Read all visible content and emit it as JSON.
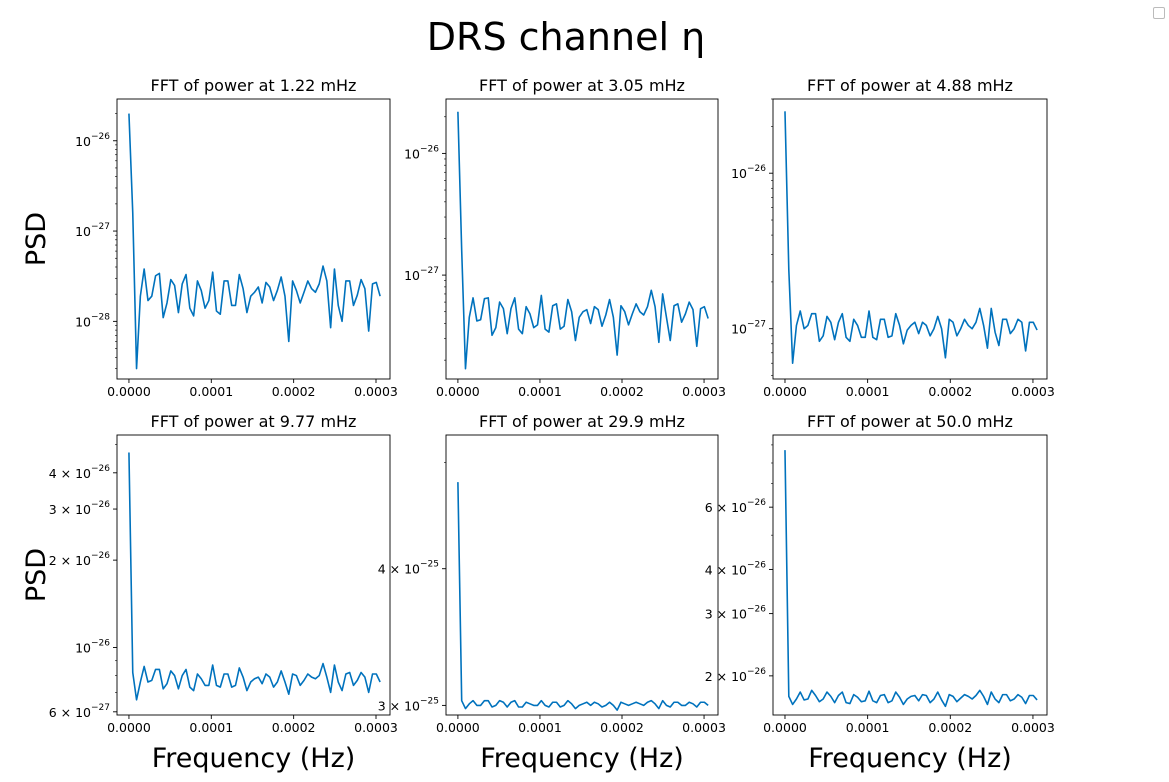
{
  "figure": {
    "suptitle": "DRS channel η"
  },
  "colors": {
    "line": "#0072bd",
    "axes": "#000000",
    "background": "#ffffff"
  },
  "chart_data": [
    {
      "type": "line",
      "title": "FFT of power at 1.22 mHz",
      "ylabel": "PSD",
      "xlabel": "",
      "yscale": "log",
      "xlim": [
        -1.45e-05,
        0.000317
      ],
      "ylim": [
        2.3e-29,
        2.9e-26
      ],
      "xticks": [
        {
          "v": 0,
          "label": "0.0000"
        },
        {
          "v": 0.0001,
          "label": "0.0001"
        },
        {
          "v": 0.0002,
          "label": "0.0002"
        },
        {
          "v": 0.0003,
          "label": "0.0003"
        }
      ],
      "yticks": [
        {
          "v": 1e-28,
          "base": "10",
          "exp": "−28"
        },
        {
          "v": 1e-27,
          "base": "10",
          "exp": "−27"
        },
        {
          "v": 1e-26,
          "base": "10",
          "exp": "−26"
        }
      ],
      "series": [
        {
          "values": [
            2e-26,
            1.6e-27,
            3e-29,
            1.9e-28,
            3.8e-28,
            1.7e-28,
            1.9e-28,
            3.2e-28,
            3.4e-28,
            1.1e-28,
            1.6e-28,
            2.9e-28,
            2.5e-28,
            1.25e-28,
            2.6e-28,
            3.3e-28,
            1.4e-28,
            1.15e-28,
            2.8e-28,
            2.2e-28,
            1.4e-28,
            1.7e-28,
            3.5e-28,
            1.3e-28,
            1.2e-28,
            2.8e-28,
            2.8e-28,
            1.5e-28,
            1.5e-28,
            3.3e-28,
            2.3e-28,
            1.25e-28,
            1.9e-28,
            2.1e-28,
            2.4e-28,
            1.6e-28,
            2.7e-28,
            2.4e-28,
            1.7e-28,
            2.2e-28,
            3.1e-28,
            1.9e-28,
            6e-29,
            2.8e-28,
            2.2e-28,
            1.6e-28,
            2.1e-28,
            2.8e-28,
            2.3e-28,
            2.1e-28,
            2.6e-28,
            4.1e-28,
            2.8e-28,
            8.5e-29,
            3.8e-28,
            1.5e-28,
            1e-28,
            2.8e-28,
            2.8e-28,
            1.5e-28,
            1.95e-28,
            2.9e-28,
            2.3e-28,
            7.8e-29,
            2.6e-28,
            2.7e-28,
            1.9e-28
          ]
        }
      ]
    },
    {
      "type": "line",
      "title": "FFT of power at 3.05 mHz",
      "ylabel": "",
      "xlabel": "",
      "yscale": "log",
      "xlim": [
        -1.45e-05,
        0.000317
      ],
      "ylim": [
        1.4e-28,
        2.8e-26
      ],
      "xticks": [
        {
          "v": 0,
          "label": "0.0000"
        },
        {
          "v": 0.0001,
          "label": "0.0001"
        },
        {
          "v": 0.0002,
          "label": "0.0002"
        },
        {
          "v": 0.0003,
          "label": "0.0003"
        }
      ],
      "yticks": [
        {
          "v": 1e-27,
          "base": "10",
          "exp": "−27"
        },
        {
          "v": 1e-26,
          "base": "10",
          "exp": "−26"
        }
      ],
      "series": [
        {
          "values": [
            2.2e-26,
            1.6e-27,
            1.7e-28,
            4.5e-28,
            6.5e-28,
            4.2e-28,
            4.3e-28,
            6.4e-28,
            6.5e-28,
            3.2e-28,
            3.7e-28,
            6e-28,
            5.3e-28,
            3.3e-28,
            5.3e-28,
            6.5e-28,
            3.6e-28,
            3.3e-28,
            5.5e-28,
            4.8e-28,
            3.7e-28,
            3.9e-28,
            6.8e-28,
            3.6e-28,
            3.4e-28,
            5.6e-28,
            5.8e-28,
            3.6e-28,
            3.8e-28,
            6.3e-28,
            5e-28,
            2.9e-28,
            4.5e-28,
            5e-28,
            5.2e-28,
            4e-28,
            5.5e-28,
            5.2e-28,
            3.8e-28,
            4.7e-28,
            6.3e-28,
            4.5e-28,
            2.2e-28,
            5.6e-28,
            5e-28,
            3.9e-28,
            4.8e-28,
            5.8e-28,
            5e-28,
            4.7e-28,
            5.5e-28,
            7.5e-28,
            5.5e-28,
            2.8e-28,
            7e-28,
            4.5e-28,
            2.9e-28,
            5.6e-28,
            5.8e-28,
            4.1e-28,
            4.8e-28,
            6e-28,
            5.2e-28,
            2.6e-28,
            5.3e-28,
            5.5e-28,
            4.4e-28
          ]
        }
      ]
    },
    {
      "type": "line",
      "title": "FFT of power at 4.88 mHz",
      "ylabel": "",
      "xlabel": "",
      "yscale": "log",
      "xlim": [
        -1.45e-05,
        0.000317
      ],
      "ylim": [
        4.75e-28,
        3e-26
      ],
      "xticks": [
        {
          "v": 0,
          "label": "0.0000"
        },
        {
          "v": 0.0001,
          "label": "0.0001"
        },
        {
          "v": 0.0002,
          "label": "0.0002"
        },
        {
          "v": 0.0003,
          "label": "0.0003"
        }
      ],
      "yticks": [
        {
          "v": 1e-27,
          "base": "10",
          "exp": "−27"
        },
        {
          "v": 1e-26,
          "base": "10",
          "exp": "−26"
        }
      ],
      "series": [
        {
          "values": [
            2.5e-26,
            2.4e-27,
            6e-28,
            1.05e-27,
            1.3e-27,
            1e-27,
            1.05e-27,
            1.25e-27,
            1.25e-27,
            8.3e-28,
            9e-28,
            1.2e-27,
            1.1e-27,
            8.5e-28,
            1.1e-27,
            1.25e-27,
            8.8e-28,
            8.3e-28,
            1.15e-27,
            1.05e-27,
            8.8e-28,
            8.8e-28,
            1.3e-27,
            8.8e-28,
            8.5e-28,
            1.15e-27,
            1.15e-27,
            8.8e-28,
            9e-28,
            1.25e-27,
            1.05e-27,
            8e-28,
            9.8e-28,
            1.05e-27,
            1.1e-27,
            9.3e-28,
            1.1e-27,
            1.05e-27,
            9e-28,
            1e-27,
            1.2e-27,
            1e-27,
            6.5e-28,
            1.15e-27,
            1.1e-27,
            9e-28,
            1e-27,
            1.15e-27,
            1.05e-27,
            1e-27,
            1.1e-27,
            1.35e-27,
            1.05e-27,
            7.5e-28,
            1.35e-27,
            9.5e-28,
            7.8e-28,
            1.15e-27,
            1.15e-27,
            9.3e-28,
            1e-27,
            1.15e-27,
            1.1e-27,
            7.2e-28,
            1.1e-27,
            1.1e-27,
            9.8e-28
          ]
        }
      ]
    },
    {
      "type": "line",
      "title": "FFT of power at 9.77 mHz",
      "ylabel": "PSD",
      "xlabel": "Frequency (Hz)",
      "yscale": "log",
      "xlim": [
        -1.45e-05,
        0.000317
      ],
      "ylim": [
        5.85e-27,
        5.4e-26
      ],
      "xticks": [
        {
          "v": 0,
          "label": "0.0000"
        },
        {
          "v": 0.0001,
          "label": "0.0001"
        },
        {
          "v": 0.0002,
          "label": "0.0002"
        },
        {
          "v": 0.0003,
          "label": "0.0003"
        }
      ],
      "yticks": [
        {
          "v": 6e-27,
          "base": "6 × 10",
          "exp": "−27"
        },
        {
          "v": 1e-26,
          "base": "10",
          "exp": "−26"
        },
        {
          "v": 2e-26,
          "base": "2 × 10",
          "exp": "−26"
        },
        {
          "v": 3e-26,
          "base": "3 × 10",
          "exp": "−26"
        },
        {
          "v": 4e-26,
          "base": "4 × 10",
          "exp": "−26"
        }
      ],
      "series": [
        {
          "values": [
            4.7e-26,
            8.2e-27,
            6.6e-27,
            7.6e-27,
            8.6e-27,
            7.6e-27,
            7.7e-27,
            8.4e-27,
            8.4e-27,
            7.2e-27,
            7.5e-27,
            8.3e-27,
            8e-27,
            7.2e-27,
            8e-27,
            8.4e-27,
            7.3e-27,
            7.1e-27,
            8.1e-27,
            7.8e-27,
            7.4e-27,
            7.4e-27,
            8.7e-27,
            7.4e-27,
            7.3e-27,
            8.1e-27,
            8.1e-27,
            7.3e-27,
            7.4e-27,
            8.5e-27,
            7.9e-27,
            7.1e-27,
            7.6e-27,
            7.8e-27,
            7.9e-27,
            7.5e-27,
            8.1e-27,
            7.9e-27,
            7.3e-27,
            7.6e-27,
            8.3e-27,
            7.6e-27,
            6.9e-27,
            8.1e-27,
            8e-27,
            7.4e-27,
            7.7e-27,
            8.1e-27,
            7.9e-27,
            7.8e-27,
            8e-27,
            8.8e-27,
            7.9e-27,
            7e-27,
            8.7e-27,
            7.6e-27,
            7.1e-27,
            8.1e-27,
            8.2e-27,
            7.4e-27,
            7.7e-27,
            8.2e-27,
            7.9e-27,
            7e-27,
            8.1e-27,
            8.1e-27,
            7.6e-27
          ]
        }
      ]
    },
    {
      "type": "line",
      "title": "FFT of power at 29.9 mHz",
      "ylabel": "",
      "xlabel": "Frequency (Hz)",
      "yscale": "log",
      "xlim": [
        -1.45e-05,
        0.000317
      ],
      "ylim": [
        2.94e-25,
        5.3e-25
      ],
      "xticks": [
        {
          "v": 0,
          "label": "0.0000"
        },
        {
          "v": 0.0001,
          "label": "0.0001"
        },
        {
          "v": 0.0002,
          "label": "0.0002"
        },
        {
          "v": 0.0003,
          "label": "0.0003"
        }
      ],
      "yticks": [
        {
          "v": 3e-25,
          "base": "3 × 10",
          "exp": "−25"
        },
        {
          "v": 4e-25,
          "base": "4 × 10",
          "exp": "−25"
        }
      ],
      "series": [
        {
          "values": [
            4.8e-25,
            3.03e-25,
            2.98e-25,
            3.01e-25,
            3.03e-25,
            3e-25,
            3e-25,
            3.03e-25,
            3.03e-25,
            2.99e-25,
            3e-25,
            3.03e-25,
            3.02e-25,
            2.99e-25,
            3.02e-25,
            3.03e-25,
            2.99e-25,
            2.99e-25,
            3.02e-25,
            3.01e-25,
            3e-25,
            3e-25,
            3.03e-25,
            3e-25,
            2.99e-25,
            3.02e-25,
            3.02e-25,
            2.99e-25,
            3e-25,
            3.03e-25,
            3.01e-25,
            2.98e-25,
            3e-25,
            3.01e-25,
            3.02e-25,
            3e-25,
            3.02e-25,
            3.01e-25,
            2.99e-25,
            3e-25,
            3.02e-25,
            3e-25,
            2.97e-25,
            3.02e-25,
            3.01e-25,
            3e-25,
            3.01e-25,
            3.02e-25,
            3.01e-25,
            3e-25,
            3.02e-25,
            3.03e-25,
            3.01e-25,
            2.98e-25,
            3.03e-25,
            3e-25,
            2.99e-25,
            3.02e-25,
            3.02e-25,
            3e-25,
            3e-25,
            3.02e-25,
            3.01e-25,
            2.99e-25,
            3.02e-25,
            3.02e-25,
            3e-25
          ]
        }
      ]
    },
    {
      "type": "line",
      "title": "FFT of power at 50.0 mHz",
      "ylabel": "",
      "xlabel": "Frequency (Hz)",
      "yscale": "log",
      "xlim": [
        -1.45e-05,
        0.000317
      ],
      "ylim": [
        1.55e-26,
        9.6e-26
      ],
      "xticks": [
        {
          "v": 0,
          "label": "0.0000"
        },
        {
          "v": 0.0001,
          "label": "0.0001"
        },
        {
          "v": 0.0002,
          "label": "0.0002"
        },
        {
          "v": 0.0003,
          "label": "0.0003"
        }
      ],
      "yticks": [
        {
          "v": 2e-26,
          "base": "2 × 10",
          "exp": "−26"
        },
        {
          "v": 3e-26,
          "base": "3 × 10",
          "exp": "−26"
        },
        {
          "v": 4e-26,
          "base": "4 × 10",
          "exp": "−26"
        },
        {
          "v": 6e-26,
          "base": "6 × 10",
          "exp": "−26"
        }
      ],
      "series": [
        {
          "values": [
            8.7e-26,
            1.75e-26,
            1.66e-26,
            1.72e-26,
            1.8e-26,
            1.71e-26,
            1.72e-26,
            1.82e-26,
            1.76e-26,
            1.69e-26,
            1.72e-26,
            1.8e-26,
            1.75e-26,
            1.68e-26,
            1.76e-26,
            1.8e-26,
            1.68e-26,
            1.67e-26,
            1.77e-26,
            1.74e-26,
            1.69e-26,
            1.7e-26,
            1.81e-26,
            1.7e-26,
            1.68e-26,
            1.76e-26,
            1.77e-26,
            1.68e-26,
            1.7e-26,
            1.8e-26,
            1.74e-26,
            1.66e-26,
            1.72e-26,
            1.75e-26,
            1.76e-26,
            1.7e-26,
            1.77e-26,
            1.76e-26,
            1.68e-26,
            1.72e-26,
            1.8e-26,
            1.71e-26,
            1.64e-26,
            1.77e-26,
            1.75e-26,
            1.69e-26,
            1.73e-26,
            1.77e-26,
            1.75e-26,
            1.72e-26,
            1.76e-26,
            1.82e-26,
            1.75e-26,
            1.66e-26,
            1.8e-26,
            1.72e-26,
            1.68e-26,
            1.77e-26,
            1.77e-26,
            1.7e-26,
            1.72e-26,
            1.77e-26,
            1.74e-26,
            1.67e-26,
            1.76e-26,
            1.76e-26,
            1.71e-26
          ]
        }
      ]
    }
  ]
}
